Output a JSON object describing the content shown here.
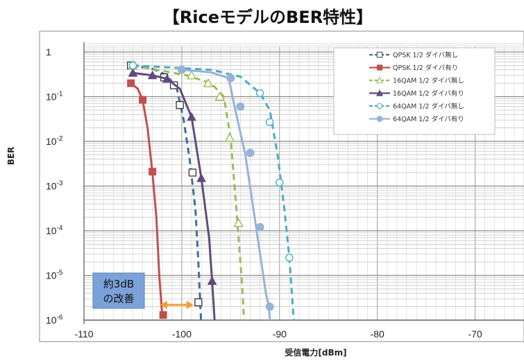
{
  "chart_data": {
    "type": "line",
    "title": "【RiceモデルのBER特性】",
    "xlabel": "受信電力[dBm]",
    "ylabel": "BER",
    "xlim": [
      -110,
      -65
    ],
    "ylim": [
      1e-06,
      1
    ],
    "yscale": "log",
    "grid": true,
    "legend_position": "top-right",
    "x_ticks": [
      "-110",
      "-100",
      "-90",
      "-80",
      "-70"
    ],
    "x_tick_values": [
      -110,
      -100,
      -90,
      -80,
      -70
    ],
    "y_ticks": [
      {
        "base": "1",
        "exp": "",
        "value": 1
      },
      {
        "base": "10",
        "exp": "-1",
        "value": 0.1
      },
      {
        "base": "10",
        "exp": "-2",
        "value": 0.01
      },
      {
        "base": "10",
        "exp": "-3",
        "value": 0.001
      },
      {
        "base": "10",
        "exp": "-4",
        "value": 0.0001
      },
      {
        "base": "10",
        "exp": "-5",
        "value": 1e-05
      },
      {
        "base": "10",
        "exp": "-6",
        "value": 1e-06
      }
    ],
    "series": [
      {
        "name": "QPSK 1/2 ダイバ無し",
        "color": "#3d6f9a",
        "dashed": true,
        "marker": "open-square",
        "curve": [
          [
            -105.2,
            0.5
          ],
          [
            -103,
            0.42
          ],
          [
            -101.5,
            0.3
          ],
          [
            -100.5,
            0.15
          ],
          [
            -99.8,
            0.03
          ],
          [
            -99.2,
            0.004
          ],
          [
            -98.6,
            0.0003
          ],
          [
            -98.3,
            2e-05
          ],
          [
            -98.1,
            2e-06
          ],
          [
            -98.0,
            7e-07
          ]
        ],
        "markers": [
          [
            -105.2,
            0.5
          ],
          [
            -101.8,
            0.27
          ],
          [
            -100.8,
            0.18
          ],
          [
            -100.2,
            0.065
          ],
          [
            -98.9,
            0.002
          ],
          [
            -98.3,
            2.5e-06
          ]
        ]
      },
      {
        "name": "QPSK 1/2 ダイバ有り",
        "color": "#c0504d",
        "dashed": false,
        "marker": "filled-square",
        "curve": [
          [
            -105.2,
            0.2
          ],
          [
            -104.5,
            0.15
          ],
          [
            -104,
            0.085
          ],
          [
            -103.5,
            0.02
          ],
          [
            -103,
            0.002
          ],
          [
            -102.6,
            0.0002
          ],
          [
            -102.3,
            1e-05
          ],
          [
            -102,
            1.3e-06
          ]
        ],
        "markers": [
          [
            -105.2,
            0.2
          ],
          [
            -104,
            0.085
          ],
          [
            -103,
            0.0021
          ],
          [
            -101.9,
            1.3e-06
          ]
        ]
      },
      {
        "name": "16QAM 1/2 ダイバ無し",
        "color": "#9bbb59",
        "dashed": true,
        "marker": "open-triangle",
        "curve": [
          [
            -105,
            0.5
          ],
          [
            -99.5,
            0.3
          ],
          [
            -97,
            0.2
          ],
          [
            -95.7,
            0.1
          ],
          [
            -95,
            0.012
          ],
          [
            -94.3,
            0.00015
          ],
          [
            -93.8,
            5e-06
          ],
          [
            -93.6,
            7e-07
          ]
        ],
        "markers": [
          [
            -105,
            0.5
          ],
          [
            -99,
            0.3
          ],
          [
            -97.3,
            0.2
          ],
          [
            -96.1,
            0.1
          ],
          [
            -95.1,
            0.012
          ],
          [
            -94.2,
            0.00015
          ]
        ]
      },
      {
        "name": "16QAM 1/2 ダイバ有り",
        "color": "#604a7b",
        "dashed": false,
        "marker": "filled-triangle",
        "curve": [
          [
            -105,
            0.34
          ],
          [
            -103,
            0.3
          ],
          [
            -101.5,
            0.25
          ],
          [
            -100.2,
            0.15
          ],
          [
            -99,
            0.035
          ],
          [
            -98,
            0.0015
          ],
          [
            -97.2,
            7e-05
          ],
          [
            -96.9,
            7.5e-06
          ],
          [
            -96.6,
            7e-07
          ]
        ],
        "markers": [
          [
            -105,
            0.34
          ],
          [
            -103,
            0.3
          ],
          [
            -101.5,
            0.25
          ],
          [
            -99,
            0.035
          ],
          [
            -98,
            0.0015
          ],
          [
            -96.9,
            7.5e-06
          ]
        ]
      },
      {
        "name": "64QAM 1/2 ダイバ無し",
        "color": "#4aacc6",
        "dashed": true,
        "marker": "open-circle",
        "curve": [
          [
            -105,
            0.5
          ],
          [
            -97,
            0.4
          ],
          [
            -94,
            0.28
          ],
          [
            -92,
            0.12
          ],
          [
            -91,
            0.05
          ],
          [
            -90.2,
            0.005
          ],
          [
            -89.5,
            0.0003
          ],
          [
            -89,
            2.5e-05
          ],
          [
            -88.7,
            3e-06
          ],
          [
            -88.5,
            7e-07
          ]
        ],
        "markers": [
          [
            -105,
            0.5
          ],
          [
            -92,
            0.12
          ],
          [
            -91,
            0.027
          ],
          [
            -90,
            0.0012
          ],
          [
            -89,
            2.5e-05
          ]
        ]
      },
      {
        "name": "64QAM 1/2 ダイバ有り",
        "color": "#95b3d7",
        "dashed": false,
        "marker": "filled-circle",
        "curve": [
          [
            -100,
            0.4
          ],
          [
            -97,
            0.35
          ],
          [
            -95.2,
            0.26
          ],
          [
            -94.6,
            0.06
          ],
          [
            -93.5,
            0.005
          ],
          [
            -92.4,
            0.00012
          ],
          [
            -91.4,
            4e-06
          ],
          [
            -91.1,
            2e-06
          ],
          [
            -90.9,
            7e-07
          ]
        ],
        "markers": [
          [
            -100,
            0.4
          ],
          [
            -95,
            0.26
          ],
          [
            -94,
            0.06
          ],
          [
            -93,
            0.0055
          ],
          [
            -92,
            0.00012
          ],
          [
            -91,
            2e-06
          ]
        ]
      }
    ],
    "annotations": [
      {
        "text_line1": "約3dB",
        "text_line2": "の改善"
      },
      {
        "type": "double-arrow",
        "from": [
          -102.2,
          2.5e-06
        ],
        "to": [
          -98.8,
          2.5e-06
        ],
        "color": "#f0a030"
      }
    ]
  }
}
